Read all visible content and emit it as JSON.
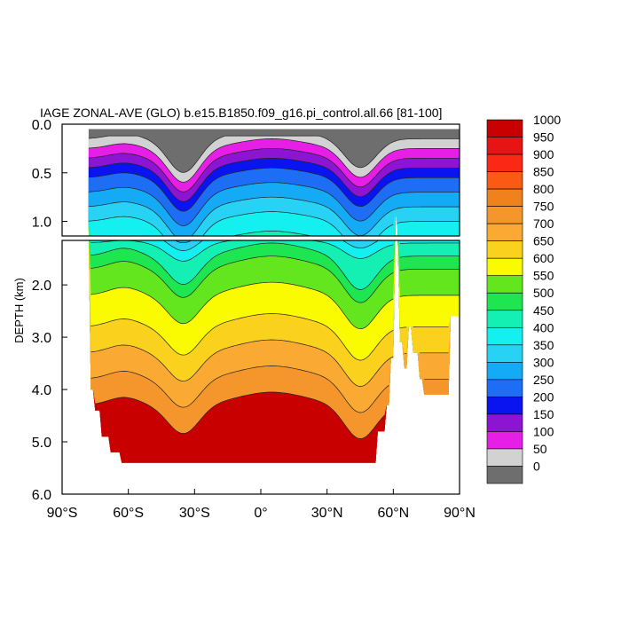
{
  "chart_data": {
    "type": "heatmap",
    "title": "IAGE ZONAL-AVE (GLO) b.e15.B1850.f09_g16.pi_control.all.66 [81-100]",
    "ylabel": "DEPTH (km)",
    "xlabel": "",
    "xlim": [
      -90,
      90
    ],
    "ylim": [
      6.0,
      0.0
    ],
    "x_ticks": [
      {
        "value": -90,
        "label": "90°S"
      },
      {
        "value": -60,
        "label": "60°S"
      },
      {
        "value": -30,
        "label": "30°S"
      },
      {
        "value": 0,
        "label": "0°"
      },
      {
        "value": 30,
        "label": "30°N"
      },
      {
        "value": 60,
        "label": "60°N"
      },
      {
        "value": 90,
        "label": "90°N"
      }
    ],
    "y_ticks_upper": [
      {
        "value": 0.0,
        "label": "0.0"
      },
      {
        "value": 0.5,
        "label": "0.5"
      },
      {
        "value": 1.0,
        "label": "1.0"
      }
    ],
    "y_ticks_lower": [
      {
        "value": 2.0,
        "label": "2.0"
      },
      {
        "value": 3.0,
        "label": "3.0"
      },
      {
        "value": 4.0,
        "label": "4.0"
      },
      {
        "value": 5.0,
        "label": "5.0"
      },
      {
        "value": 6.0,
        "label": "6.0"
      }
    ],
    "levels": [
      0,
      50,
      100,
      150,
      200,
      250,
      300,
      350,
      400,
      450,
      500,
      550,
      600,
      650,
      700,
      750,
      800,
      850,
      900,
      950,
      1000
    ],
    "level_labels": [
      "1000",
      "950",
      "900",
      "850",
      "800",
      "750",
      "700",
      "650",
      "600",
      "550",
      "500",
      "450",
      "400",
      "350",
      "300",
      "250",
      "200",
      "150",
      "100",
      "50",
      "0"
    ],
    "colors": [
      "#6e6e6e",
      "#d2d2d2",
      "#e61ee6",
      "#8c14d2",
      "#0a14f0",
      "#1e6ef5",
      "#14aaf5",
      "#28d2f5",
      "#14f0f0",
      "#14f0b4",
      "#1ee650",
      "#64e61e",
      "#fafa00",
      "#fad21e",
      "#faaa32",
      "#f5962d",
      "#f0821e",
      "#fa5a14",
      "#fa2814",
      "#e61414",
      "#c80000"
    ],
    "contour_profiles": [
      {
        "level": 0,
        "value": 0.15
      },
      {
        "level": 50,
        "value": 0.25
      },
      {
        "level": 100,
        "value": 0.35
      },
      {
        "level": 150,
        "value": 0.45
      },
      {
        "level": 200,
        "value": 0.55
      },
      {
        "level": 250,
        "value": 0.7
      },
      {
        "level": 300,
        "value": 0.85
      },
      {
        "level": 350,
        "value": 1.0
      },
      {
        "level": 400,
        "value": 1.2
      },
      {
        "level": 450,
        "value": 1.45
      },
      {
        "level": 500,
        "value": 1.7
      },
      {
        "level": 550,
        "value": 2.2
      },
      {
        "level": 600,
        "value": 2.8
      },
      {
        "level": 650,
        "value": 3.3
      },
      {
        "level": 700,
        "value": 3.8
      },
      {
        "level": 750,
        "value": 4.3
      }
    ],
    "depth_break_km": 1.15,
    "grid": false,
    "legend_placement": "right"
  }
}
